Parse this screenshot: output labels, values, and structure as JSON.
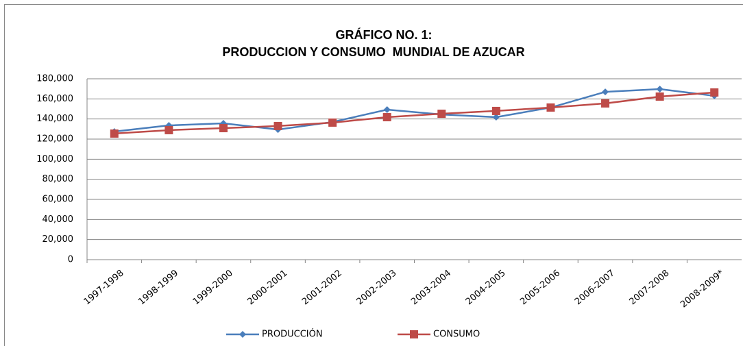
{
  "chart_data": {
    "type": "line",
    "title": [
      "GRÁFICO NO. 1:",
      "PRODUCCION Y CONSUMO  MUNDIAL DE AZUCAR"
    ],
    "categories": [
      "1997-1998",
      "1998-1999",
      "1999-2000",
      "2000-2001",
      "2001-2002",
      "2002-2003",
      "2003-2004",
      "2004-2005",
      "2005-2006",
      "2006-2007",
      "2007-2008",
      "2008-2009*"
    ],
    "series": [
      {
        "name": "PRODUCCIÓN",
        "color": "#4a7ebb",
        "marker": "diamond",
        "values": [
          127500,
          133600,
          135700,
          129500,
          137000,
          149300,
          144500,
          141800,
          151400,
          167000,
          169800,
          163000
        ]
      },
      {
        "name": "CONSUMO",
        "color": "#be4b48",
        "marker": "square",
        "values": [
          125500,
          128900,
          130900,
          133000,
          136400,
          141800,
          145200,
          148000,
          151400,
          155500,
          162300,
          166400
        ]
      }
    ],
    "ylim": [
      0,
      180000
    ],
    "yticks": [
      0,
      {
        "value": 20000,
        "label": "20,000"
      },
      {
        "value": 40000,
        "label": "40,000"
      },
      {
        "value": 60000,
        "label": "60,000"
      },
      {
        "value": 80000,
        "label": "80,000"
      },
      {
        "value": 100000,
        "label": "100,000"
      },
      {
        "value": 120000,
        "label": "120,000"
      },
      {
        "value": 140000,
        "label": "140,000"
      },
      {
        "value": 160000,
        "label": "160,000"
      },
      {
        "value": 180000,
        "label": "180,000"
      }
    ],
    "grid": true,
    "legend": "bottom"
  }
}
